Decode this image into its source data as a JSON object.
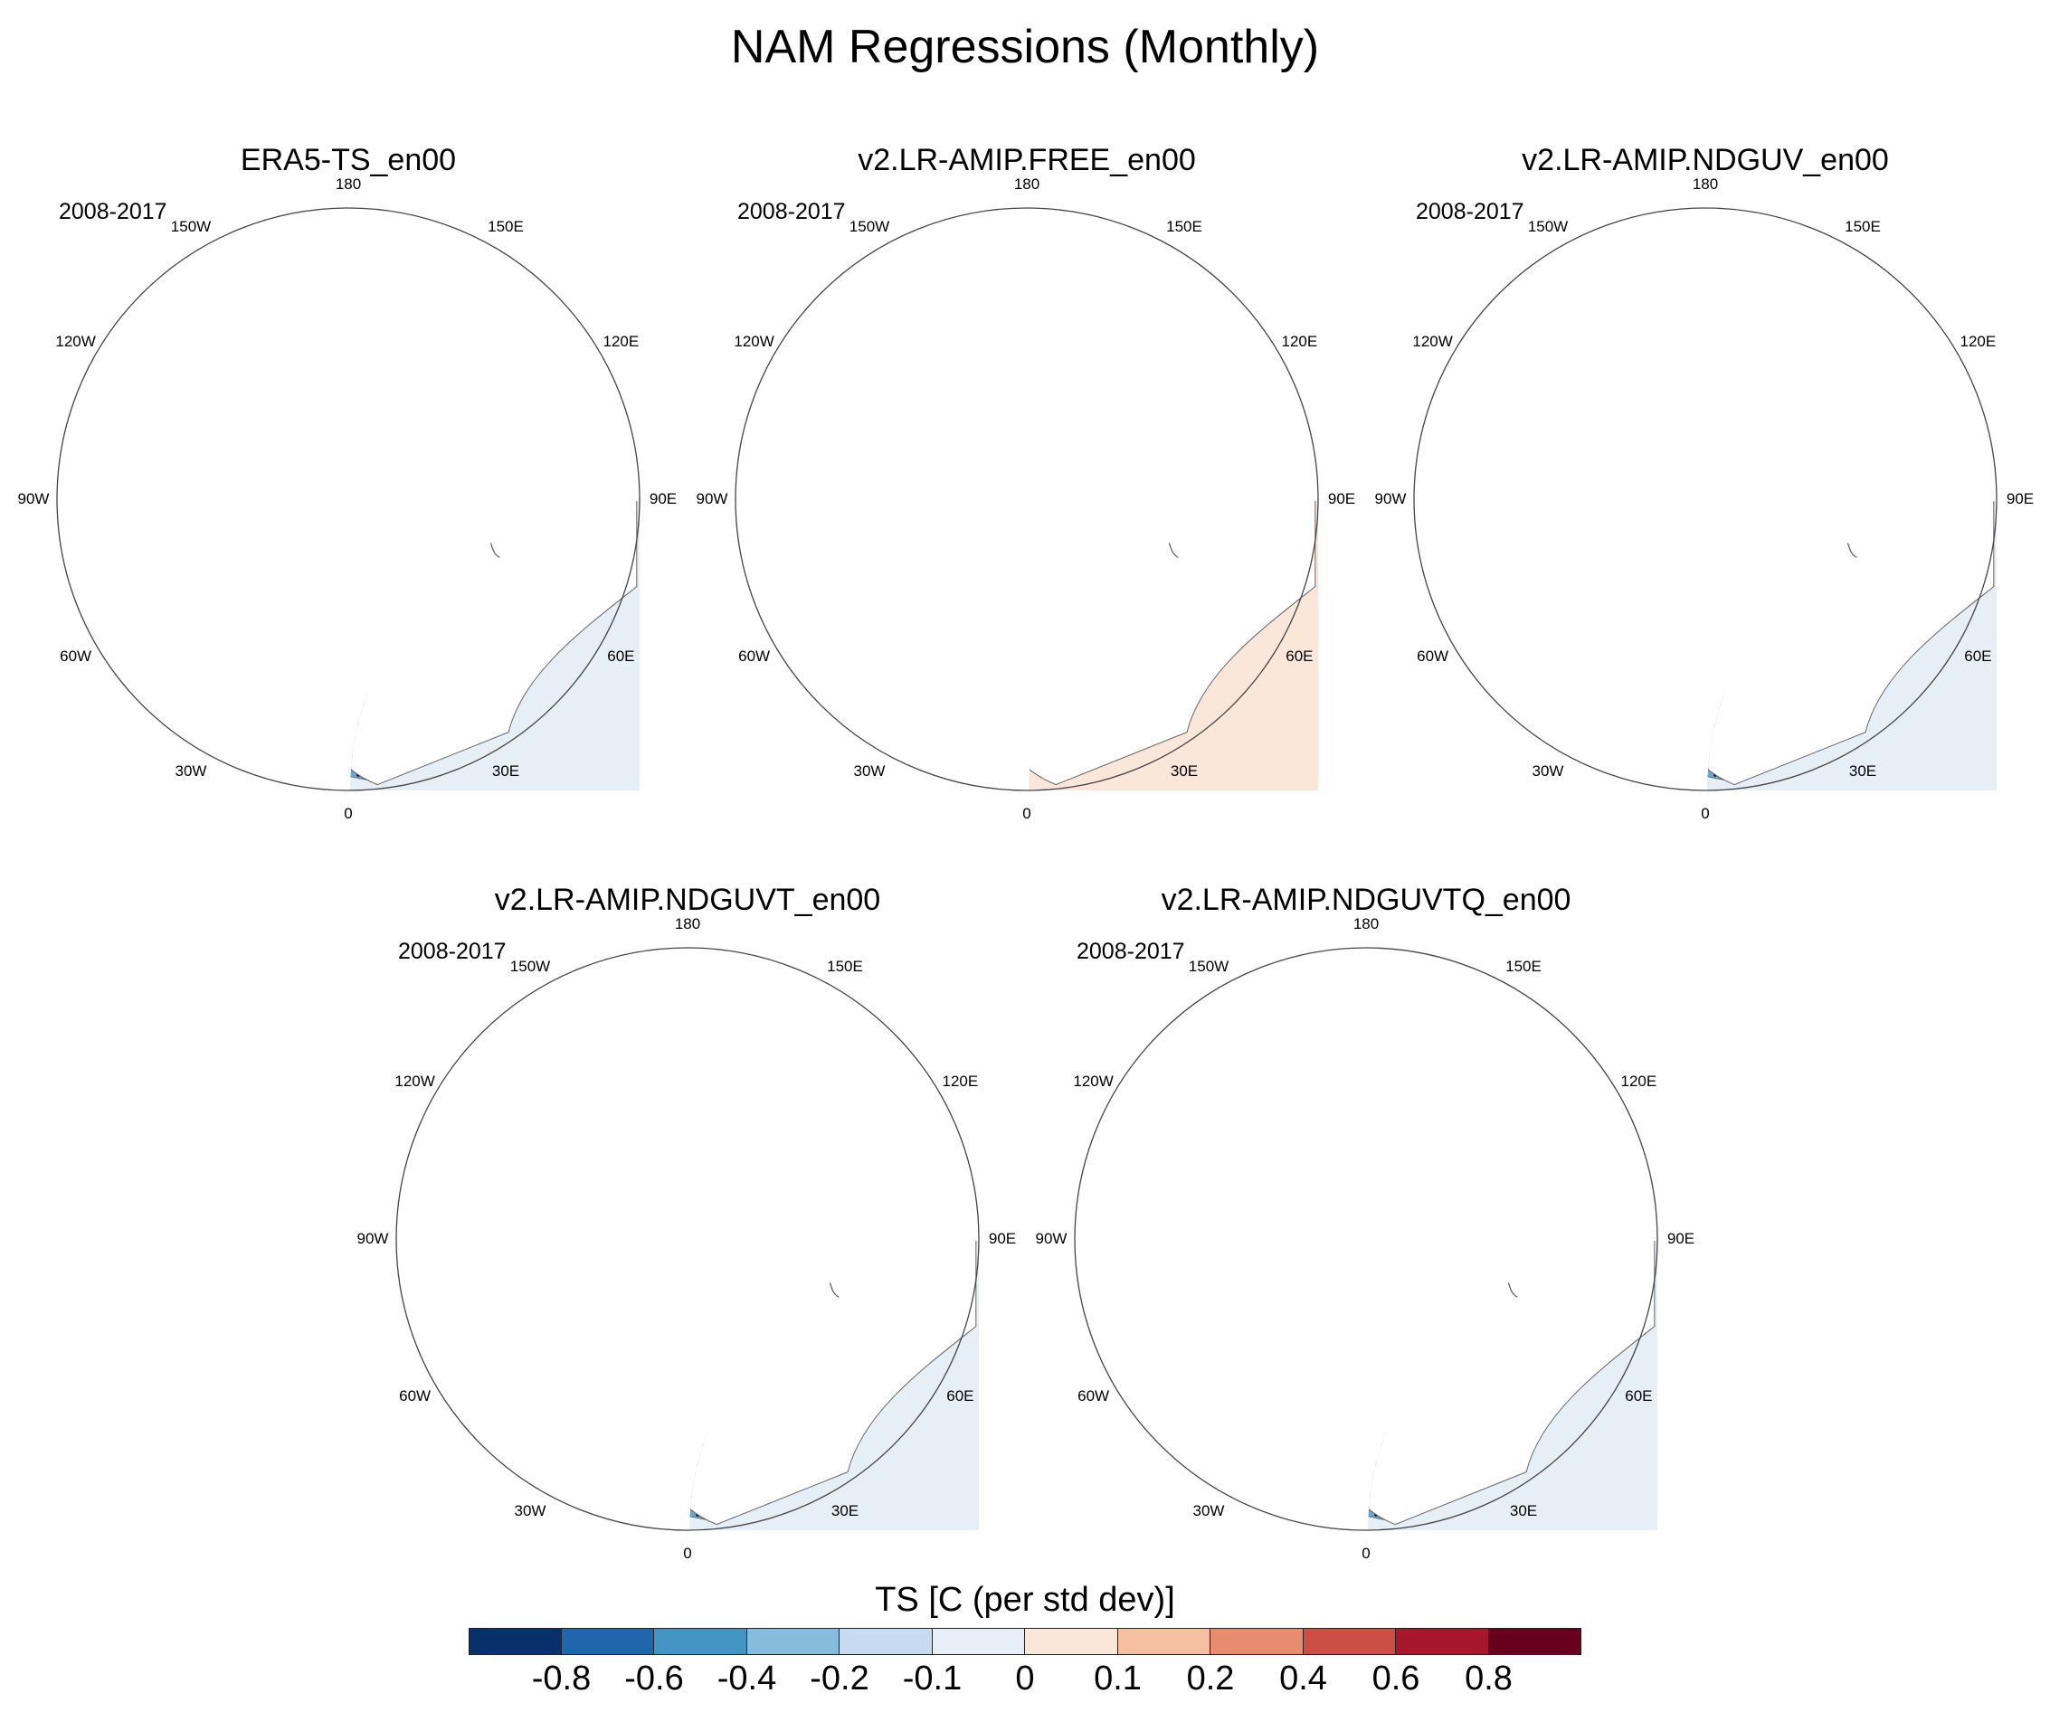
{
  "title": "NAM Regressions (Monthly)",
  "panels": [
    {
      "title": "ERA5-TS_en00",
      "period": "2008-2017"
    },
    {
      "title": "v2.LR-AMIP.FREE_en00",
      "period": "2008-2017"
    },
    {
      "title": "v2.LR-AMIP.NDGUV_en00",
      "period": "2008-2017"
    },
    {
      "title": "v2.LR-AMIP.NDGUVT_en00",
      "period": "2008-2017"
    },
    {
      "title": "v2.LR-AMIP.NDGUVTQ_en00",
      "period": "2008-2017"
    }
  ],
  "longitude_labels": [
    "180",
    "150E",
    "120E",
    "90E",
    "60E",
    "30E",
    "0",
    "30W",
    "60W",
    "90W",
    "120W",
    "150W"
  ],
  "colorbar": {
    "title": "TS [C (per std dev)]",
    "colors": [
      "#08306b",
      "#2166ac",
      "#4393c3",
      "#86bcdc",
      "#c6dbef",
      "#e6eef6",
      "#fbe6da",
      "#f6bfa2",
      "#e88c6f",
      "#cc4e45",
      "#a6172c",
      "#67001f"
    ],
    "labels": [
      "-0.8",
      "-0.6",
      "-0.4",
      "-0.2",
      "-0.1",
      "0",
      "0.1",
      "0.2",
      "0.4",
      "0.6",
      "0.8"
    ]
  },
  "colors": {
    "ocean_neutral_blue": "#e6eef6",
    "light_red": "#fbe6da",
    "medium_red": "#f0a98a",
    "strong_red": "#e88c6f",
    "light_blue": "#c6dbef",
    "medium_blue": "#6aa8d2",
    "strong_blue": "#2e77b5",
    "land": "#ffffff"
  }
}
